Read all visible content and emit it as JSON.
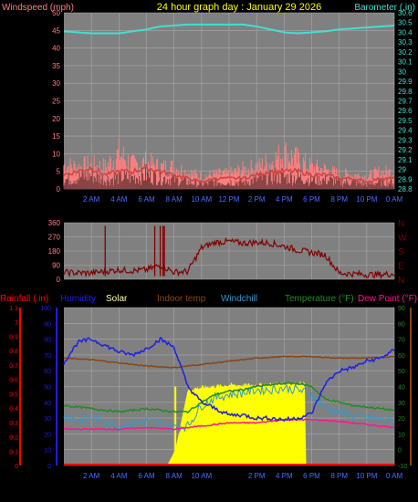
{
  "header": {
    "left_label": "Windspeed (mph)",
    "title": "24 hour graph day : January 29 2026",
    "right_label": "Barometer (.in)"
  },
  "colors": {
    "windspeed": "#ff7f7f",
    "windspeed_avg": "#d24040",
    "gust_dark": "#7f3f3f",
    "barometer": "#40e0d0",
    "title": "#ffff00",
    "winddir": "#800000",
    "rainfall": "#ff0000",
    "humidity": "#1e1ee6",
    "solar": "#ffff00",
    "indoor": "#8b4513",
    "windchill": "#3399cc",
    "temperature": "#228b22",
    "dewpoint": "#ff1493",
    "plot_bg": "#808080",
    "grid": "#a9a9a9"
  },
  "chart_data": [
    {
      "type": "line",
      "x_ticks": [
        "2 AM",
        "4 AM",
        "6 AM",
        "8 AM",
        "10 AM",
        "12 PM",
        "2 PM",
        "4 PM",
        "6 PM",
        "8 PM",
        "10 PM",
        "0 AM"
      ],
      "x_range_hours": [
        0,
        24
      ],
      "left_axis": {
        "label": "Windspeed (mph)",
        "ylim": [
          0,
          50
        ],
        "ticks": [
          "0",
          "5",
          "10",
          "15",
          "20",
          "25",
          "30",
          "35",
          "40",
          "45",
          "50"
        ]
      },
      "right_axis": {
        "label": "Barometer (.in)",
        "ylim": [
          28.8,
          30.6
        ],
        "ticks": [
          "28.8",
          "28.9",
          "29",
          "29.1",
          "29.2",
          "29.3",
          "29.4",
          "29.5",
          "29.6",
          "29.7",
          "29.8",
          "29.9",
          "30",
          "30.1",
          "30.2",
          "30.3",
          "30.4",
          "30.5",
          "30.6"
        ]
      },
      "series": [
        {
          "name": "Barometer (.in)",
          "x": [
            0,
            1,
            2,
            3,
            4,
            5,
            6,
            7,
            8,
            9,
            10,
            11,
            12,
            13,
            14,
            15,
            16,
            17,
            18,
            19,
            20,
            21,
            22,
            23,
            24
          ],
          "values": [
            30.41,
            30.4,
            30.39,
            30.39,
            30.39,
            30.41,
            30.43,
            30.46,
            30.47,
            30.48,
            30.48,
            30.48,
            30.48,
            30.48,
            30.46,
            30.43,
            30.4,
            30.39,
            30.4,
            30.41,
            30.43,
            30.44,
            30.45,
            30.46,
            30.47
          ]
        },
        {
          "name": "Windspeed (mph)",
          "x": [
            0,
            1,
            2,
            3,
            4,
            5,
            6,
            7,
            8,
            9,
            10,
            11,
            12,
            13,
            14,
            15,
            16,
            17,
            18,
            19,
            20,
            21,
            22,
            23,
            24
          ],
          "values": [
            4,
            5,
            6,
            4,
            5,
            5,
            6,
            5,
            4,
            3,
            2,
            3,
            3,
            3,
            4,
            5,
            5,
            5,
            4,
            4,
            3,
            3,
            2,
            3,
            3
          ]
        },
        {
          "name": "Gust",
          "x": [
            0,
            1,
            2,
            3,
            4,
            5,
            6,
            7,
            8,
            9,
            10,
            11,
            12,
            13,
            14,
            15,
            16,
            17,
            18,
            19,
            20,
            21,
            22,
            23,
            24
          ],
          "values": [
            10,
            9,
            10,
            9,
            15,
            10,
            11,
            9,
            9,
            7,
            5,
            6,
            6,
            8,
            9,
            11,
            15,
            12,
            9,
            8,
            6,
            6,
            5,
            7,
            7
          ]
        }
      ]
    },
    {
      "type": "scatter",
      "x_range_hours": [
        0,
        24
      ],
      "left_axis": {
        "ylim": [
          0,
          360
        ],
        "ticks": [
          "0",
          "90",
          "180",
          "270",
          "360"
        ]
      },
      "right_axis": {
        "ticks": [
          "N",
          "E",
          "S",
          "W",
          "N"
        ]
      },
      "series": [
        {
          "name": "Wind direction",
          "x": [
            0,
            1,
            2,
            3,
            4,
            5,
            6,
            7,
            8,
            9,
            10,
            11,
            12,
            13,
            14,
            15,
            16,
            17,
            18,
            19,
            20,
            21,
            22,
            23,
            24
          ],
          "values": [
            45,
            40,
            40,
            50,
            60,
            55,
            60,
            90,
            45,
            50,
            200,
            235,
            240,
            230,
            235,
            230,
            210,
            185,
            170,
            155,
            40,
            35,
            30,
            30,
            35
          ]
        }
      ]
    },
    {
      "type": "line",
      "x_ticks": [
        "2 AM",
        "4 AM",
        "6 AM",
        "8 AM",
        "10 AM",
        "2 PM",
        "4 PM",
        "6 PM",
        "8 PM",
        "10 PM",
        "0 AM"
      ],
      "x_range_hours": [
        0,
        24
      ],
      "legend": [
        "Rainfall (.in)",
        "Humidity",
        "Solar",
        "Indoor temp",
        "Windchill",
        "Temperature (°F)",
        "Dew Point (°F)"
      ],
      "left_axis_humidity": {
        "ylim": [
          0,
          100
        ],
        "ticks": [
          "0",
          "10",
          "20",
          "30",
          "40",
          "50",
          "60",
          "70",
          "80",
          "90",
          "100"
        ]
      },
      "left_axis_rain": {
        "ylim": [
          0,
          1.1
        ],
        "ticks": [
          "0",
          "0.1",
          "0.2",
          "0.3",
          "0.4",
          "0.5",
          "0.6",
          "0.7",
          "0.8",
          "0.9",
          "1",
          "1.1"
        ]
      },
      "right_axis_temp": {
        "ylim": [
          -10,
          90
        ],
        "ticks": [
          "-10",
          "0",
          "10",
          "20",
          "30",
          "40",
          "50",
          "60",
          "70",
          "80",
          "90"
        ]
      },
      "series": [
        {
          "name": "Humidity",
          "x": [
            0,
            1,
            2,
            3,
            4,
            5,
            6,
            7,
            8,
            9,
            10,
            11,
            12,
            13,
            14,
            15,
            16,
            17,
            18,
            19,
            20,
            21,
            22,
            23,
            24
          ],
          "values": [
            65,
            78,
            80,
            76,
            72,
            70,
            74,
            80,
            75,
            50,
            40,
            36,
            32,
            32,
            30,
            30,
            29,
            30,
            33,
            52,
            60,
            62,
            66,
            68,
            73
          ]
        },
        {
          "name": "Indoor temp",
          "x": [
            0,
            2,
            4,
            6,
            8,
            10,
            12,
            14,
            16,
            18,
            20,
            22,
            24
          ],
          "values": [
            58,
            57,
            55,
            53,
            52,
            54,
            56,
            58,
            59,
            59,
            58,
            58,
            59
          ]
        },
        {
          "name": "Temperature (°F)",
          "x": [
            0,
            1,
            2,
            3,
            4,
            5,
            6,
            7,
            8,
            9,
            10,
            11,
            12,
            13,
            14,
            15,
            16,
            17,
            18,
            19,
            20,
            21,
            22,
            23,
            24
          ],
          "values": [
            28,
            27,
            26,
            25,
            24,
            25,
            26,
            25,
            24,
            24,
            30,
            35,
            37,
            38,
            40,
            41,
            42,
            42,
            40,
            32,
            30,
            28,
            27,
            26,
            25
          ]
        },
        {
          "name": "Windchill",
          "x": [
            0,
            1,
            2,
            3,
            4,
            5,
            6,
            7,
            8,
            9,
            10,
            11,
            12,
            13,
            14,
            15,
            16,
            17,
            18,
            19,
            20,
            21,
            22,
            23,
            24
          ],
          "values": [
            22,
            18,
            20,
            18,
            15,
            17,
            18,
            17,
            14,
            15,
            28,
            33,
            35,
            36,
            38,
            38,
            39,
            38,
            35,
            26,
            24,
            21,
            20,
            19,
            18
          ]
        },
        {
          "name": "Dew Point (°F)",
          "x": [
            0,
            2,
            4,
            6,
            8,
            10,
            12,
            14,
            16,
            18,
            20,
            22,
            24
          ],
          "values": [
            13,
            13,
            13,
            14,
            13,
            15,
            17,
            17,
            19,
            19,
            18,
            16,
            14
          ]
        },
        {
          "name": "Solar",
          "x": [
            0,
            7.5,
            8.1,
            9.0,
            9.6,
            10.5,
            12,
            14,
            16,
            17.5,
            17.6,
            24
          ],
          "values": [
            0,
            0,
            10,
            48,
            49,
            50,
            51,
            51,
            52,
            52,
            0,
            0
          ]
        },
        {
          "name": "Rainfall (.in)",
          "x": [
            0,
            24
          ],
          "values": [
            0,
            0
          ]
        }
      ]
    }
  ]
}
